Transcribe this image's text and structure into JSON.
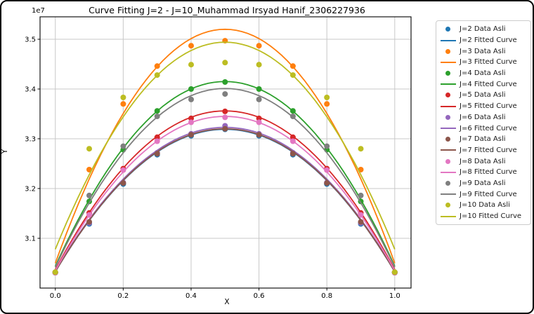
{
  "window": {
    "background": "#ffffff",
    "frame_color": "#000000"
  },
  "chart_data": {
    "type": "scatter",
    "title": "Curve Fitting J=2 - J=10_Muhammad Irsyad Hanif_2306227936",
    "xlabel": "X",
    "ylabel": "Y",
    "y_offset_text": "1e7",
    "grid": true,
    "legend_position": "right-outside",
    "xlim": [
      -0.045,
      1.048
    ],
    "ylim": [
      3.0,
      3.545
    ],
    "y_scale": 10000000,
    "xticks": [
      0.0,
      0.2,
      0.4,
      0.6,
      0.8,
      1.0
    ],
    "xtick_labels": [
      "0.0",
      "0.2",
      "0.4",
      "0.6",
      "0.8",
      "1.0"
    ],
    "yticks": [
      3.1,
      3.2,
      3.3,
      3.4,
      3.5
    ],
    "ytick_labels": [
      "3.1",
      "3.2",
      "3.3",
      "3.4",
      "3.5"
    ],
    "grid_color": "#c8c8c8",
    "x": [
      0.0,
      0.1,
      0.2,
      0.3,
      0.4,
      0.5,
      0.6,
      0.7,
      0.8,
      0.9,
      1.0
    ],
    "series": [
      {
        "j": 2,
        "color": "#1f77b4",
        "data_label": "J=2 Data Asli",
        "curve_label": "J=2 Fitted Curve",
        "data_y": [
          3.031,
          3.129,
          3.209,
          3.268,
          3.306,
          3.319,
          3.306,
          3.268,
          3.209,
          3.129,
          3.031
        ],
        "fit": {
          "y0": 3.033,
          "peak": 3.319
        }
      },
      {
        "j": 3,
        "color": "#ff7f0e",
        "data_label": "J=3 Data Asli",
        "curve_label": "J=3 Fitted Curve",
        "data_y": [
          3.032,
          3.238,
          3.37,
          3.446,
          3.487,
          3.497,
          3.487,
          3.446,
          3.37,
          3.238,
          3.032
        ],
        "fit": {
          "y0": 3.05,
          "peak": 3.52
        }
      },
      {
        "j": 4,
        "color": "#2ca02c",
        "data_label": "J=4 Data Asli",
        "curve_label": "J=4 Fitted Curve",
        "data_y": [
          3.031,
          3.174,
          3.278,
          3.356,
          3.4,
          3.414,
          3.4,
          3.356,
          3.278,
          3.174,
          3.031
        ],
        "fit": {
          "y0": 3.044,
          "peak": 3.415
        }
      },
      {
        "j": 5,
        "color": "#d62728",
        "data_label": "J=5 Data Asli",
        "curve_label": "J=5 Fitted Curve",
        "data_y": [
          3.031,
          3.151,
          3.24,
          3.303,
          3.341,
          3.355,
          3.341,
          3.303,
          3.24,
          3.151,
          3.031
        ],
        "fit": {
          "y0": 3.037,
          "peak": 3.356
        }
      },
      {
        "j": 6,
        "color": "#9467bd",
        "data_label": "J=6 Data Asli",
        "curve_label": "J=6 Fitted Curve",
        "data_y": [
          3.031,
          3.131,
          3.212,
          3.272,
          3.31,
          3.326,
          3.31,
          3.272,
          3.212,
          3.131,
          3.031
        ],
        "fit": {
          "y0": 3.034,
          "peak": 3.323
        }
      },
      {
        "j": 7,
        "color": "#8c564b",
        "data_label": "J=7 Data Asli",
        "curve_label": "J=7 Fitted Curve",
        "data_y": [
          3.031,
          3.133,
          3.211,
          3.27,
          3.308,
          3.32,
          3.308,
          3.27,
          3.211,
          3.133,
          3.031
        ],
        "fit": {
          "y0": 3.033,
          "peak": 3.32
        }
      },
      {
        "j": 8,
        "color": "#e377c2",
        "data_label": "J=8 Data Asli",
        "curve_label": "J=8 Fitted Curve",
        "data_y": [
          3.031,
          3.147,
          3.237,
          3.295,
          3.333,
          3.343,
          3.333,
          3.295,
          3.237,
          3.147,
          3.031
        ],
        "fit": {
          "y0": 3.035,
          "peak": 3.345
        }
      },
      {
        "j": 9,
        "color": "#7f7f7f",
        "data_label": "J=9 Data Asli",
        "curve_label": "J=9 Fitted Curve",
        "data_y": [
          3.032,
          3.186,
          3.285,
          3.345,
          3.379,
          3.39,
          3.379,
          3.345,
          3.285,
          3.186,
          3.032
        ],
        "fit": {
          "y0": 3.042,
          "peak": 3.401
        }
      },
      {
        "j": 10,
        "color": "#bcbd22",
        "data_label": "J=10 Data Asli",
        "curve_label": "J=10 Fitted Curve",
        "data_y": [
          3.032,
          3.28,
          3.383,
          3.428,
          3.449,
          3.453,
          3.449,
          3.428,
          3.383,
          3.28,
          3.032
        ],
        "fit": {
          "y0": 3.078,
          "peak": 3.494
        }
      }
    ]
  }
}
